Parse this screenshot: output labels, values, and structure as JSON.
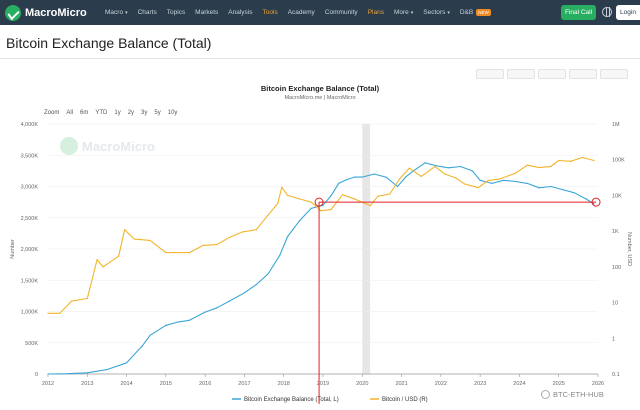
{
  "header": {
    "logo_text": "MacroMicro",
    "nav": [
      {
        "label": "Macro",
        "caret": true,
        "active": false
      },
      {
        "label": "Charts",
        "caret": false,
        "active": false
      },
      {
        "label": "Topics",
        "caret": false,
        "active": false
      },
      {
        "label": "Markets",
        "caret": false,
        "active": false
      },
      {
        "label": "Analysis",
        "caret": false,
        "active": false
      },
      {
        "label": "Tools",
        "caret": false,
        "active": true
      },
      {
        "label": "Academy",
        "caret": false,
        "active": false
      },
      {
        "label": "Community",
        "caret": false,
        "active": false
      },
      {
        "label": "Plans",
        "caret": false,
        "active": true
      },
      {
        "label": "More",
        "caret": true,
        "active": false
      },
      {
        "label": "Sectors",
        "caret": true,
        "active": false
      },
      {
        "label": "D&B",
        "caret": false,
        "active": false,
        "badge": "NEW"
      }
    ],
    "final_call": "Final Call",
    "login": "Login"
  },
  "page_title": "Bitcoin Exchange Balance (Total)",
  "zoom_options": [
    "Zoom",
    "All",
    "6m",
    "YTD",
    "1y",
    "2y",
    "3y",
    "5y",
    "10y"
  ],
  "watermark": "MacroMicro",
  "credit": "BTC-ETH-HUB",
  "colors": {
    "balance": "#3aa6d6",
    "price": "#f2b42a",
    "annotation": "#e02020",
    "shade": "#e6e6e6"
  },
  "chart_data": {
    "type": "line",
    "title": "Bitcoin Exchange Balance (Total)",
    "subtitle": "MacroMicro.me | MacroMicro",
    "x_ticks": [
      "2012",
      "2013",
      "2014",
      "2015",
      "2016",
      "2017",
      "2018",
      "2019",
      "2020",
      "2021",
      "2022",
      "2023",
      "2024",
      "2025",
      "2026"
    ],
    "x_range": [
      2012,
      2026
    ],
    "y_left": {
      "label": "Number",
      "range": [
        0,
        4000000
      ],
      "ticks": [
        "0",
        "500K",
        "1,000K",
        "1,500K",
        "2,000K",
        "2,500K",
        "3,000K",
        "3,500K",
        "4,000K"
      ]
    },
    "y_right": {
      "label": "Number, USD",
      "scale": "log",
      "range": [
        0.1,
        1000000
      ],
      "ticks": [
        "0.1",
        "1",
        "10",
        "100",
        "1K",
        "10K",
        "100K",
        "1M"
      ]
    },
    "shaded_period": [
      2020.0,
      2020.2
    ],
    "annotations": {
      "marker_left_date": 2018.9,
      "marker_right_date": 2025.95,
      "level_value": 2750000
    },
    "series": [
      {
        "name": "Bitcoin Exchange Balance (Total, L)",
        "axis": "left",
        "x": [
          2012.0,
          2012.5,
          2013.0,
          2013.5,
          2014.0,
          2014.4,
          2014.6,
          2015.0,
          2015.3,
          2015.6,
          2016.0,
          2016.3,
          2016.6,
          2017.0,
          2017.3,
          2017.6,
          2017.9,
          2018.1,
          2018.4,
          2018.7,
          2019.0,
          2019.2,
          2019.4,
          2019.6,
          2019.8,
          2020.0,
          2020.3,
          2020.6,
          2020.9,
          2021.1,
          2021.3,
          2021.6,
          2021.9,
          2022.2,
          2022.5,
          2022.8,
          2023.0,
          2023.3,
          2023.6,
          2023.9,
          2024.2,
          2024.5,
          2024.8,
          2025.1,
          2025.4,
          2025.7,
          2025.9
        ],
        "y": [
          0,
          5000,
          20000,
          70000,
          180000,
          450000,
          620000,
          780000,
          830000,
          860000,
          990000,
          1060000,
          1160000,
          1300000,
          1430000,
          1600000,
          1900000,
          2200000,
          2450000,
          2650000,
          2700000,
          2850000,
          3050000,
          3110000,
          3150000,
          3150000,
          3200000,
          3150000,
          3000000,
          3150000,
          3250000,
          3380000,
          3330000,
          3300000,
          3320000,
          3250000,
          3100000,
          3050000,
          3100000,
          3080000,
          3050000,
          2980000,
          3000000,
          2950000,
          2900000,
          2800000,
          2720000
        ]
      },
      {
        "name": "Bitcoin / USD (R)",
        "axis": "right",
        "x": [
          2012.0,
          2012.3,
          2012.6,
          2013.0,
          2013.25,
          2013.4,
          2013.8,
          2013.95,
          2014.2,
          2014.6,
          2015.0,
          2015.3,
          2015.6,
          2015.95,
          2016.3,
          2016.6,
          2016.95,
          2017.3,
          2017.6,
          2017.85,
          2017.95,
          2018.1,
          2018.4,
          2018.7,
          2018.95,
          2019.2,
          2019.5,
          2019.8,
          2020.2,
          2020.4,
          2020.7,
          2020.95,
          2021.2,
          2021.5,
          2021.85,
          2022.1,
          2022.4,
          2022.6,
          2022.95,
          2023.2,
          2023.5,
          2023.9,
          2024.2,
          2024.5,
          2024.8,
          2025.0,
          2025.3,
          2025.6,
          2025.9
        ],
        "y": [
          5,
          5,
          11,
          13,
          160,
          100,
          200,
          1100,
          600,
          550,
          250,
          250,
          250,
          400,
          420,
          650,
          950,
          1100,
          2800,
          6000,
          17000,
          10000,
          8000,
          6500,
          3700,
          4000,
          10500,
          8000,
          5200,
          9500,
          11000,
          29000,
          58000,
          34000,
          64000,
          40000,
          30000,
          21000,
          16500,
          26000,
          29000,
          42000,
          70000,
          60000,
          65000,
          95000,
          90000,
          115000,
          95000
        ]
      }
    ]
  }
}
